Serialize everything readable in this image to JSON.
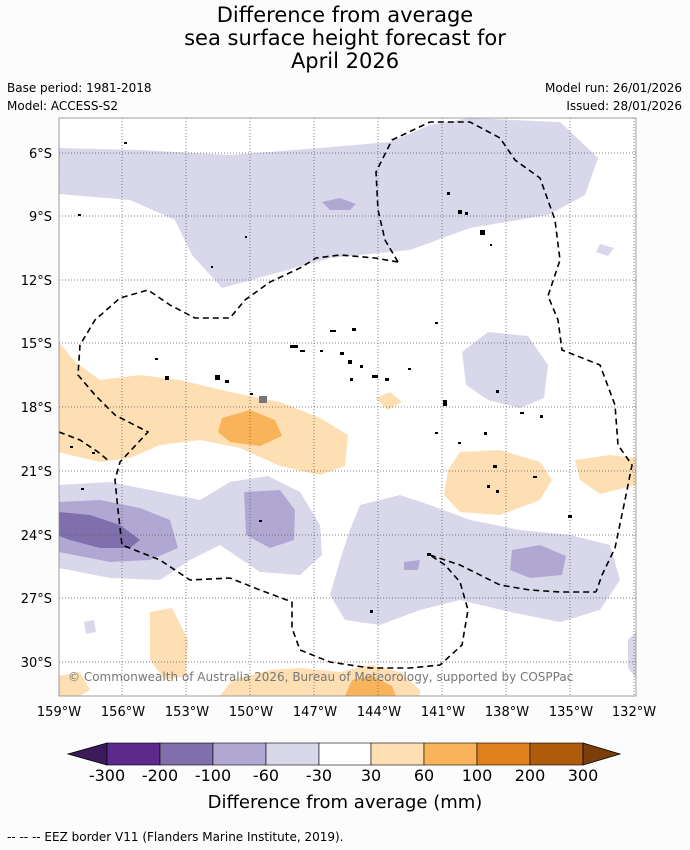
{
  "title": {
    "line1": "Difference from average",
    "line2": "sea surface height forecast for",
    "line3": "April 2026"
  },
  "meta": {
    "base_period": "Base period: 1981-2018",
    "model": "Model: ACCESS-S2",
    "model_run": "Model run: 26/01/2026",
    "issued": "Issued: 28/01/2026"
  },
  "map": {
    "lat_labels": [
      "6°S",
      "9°S",
      "12°S",
      "15°S",
      "18°S",
      "21°S",
      "24°S",
      "27°S",
      "30°S"
    ],
    "lon_labels": [
      "159°W",
      "156°W",
      "153°W",
      "150°W",
      "147°W",
      "144°W",
      "141°W",
      "138°W",
      "135°W",
      "132°W"
    ],
    "copyright": "© Commonwealth of Australia 2026, Bureau of Meteorology, supported by COSPPac"
  },
  "colorbar": {
    "title": "Difference from average (mm)",
    "labels": [
      "-300",
      "-200",
      "-100",
      "-60",
      "-30",
      "30",
      "60",
      "100",
      "200",
      "300"
    ],
    "colors": [
      "#3d1a5b",
      "#5b2a8c",
      "#7f6fad",
      "#b0a8d2",
      "#d8d8ea",
      "#ffffff",
      "#fddfb3",
      "#f9b35a",
      "#e1811b",
      "#b05a0c",
      "#7d3f0a"
    ]
  },
  "footer": {
    "eez_note": "-- -- -- EEZ border V11 (Flanders Marine Institute, 2019)."
  }
}
